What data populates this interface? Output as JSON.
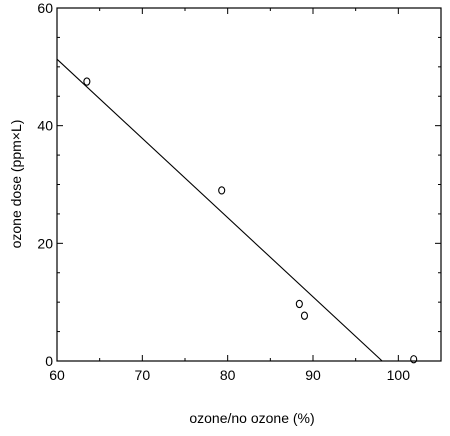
{
  "chart_data": {
    "type": "scatter",
    "title": "",
    "xlabel": "ozone/no ozone (%)",
    "ylabel": "ozone dose (ppm×L)",
    "xlim": [
      60,
      105
    ],
    "ylim": [
      0,
      60
    ],
    "xticks": [
      60,
      70,
      80,
      90,
      100
    ],
    "yticks": [
      0,
      20,
      40,
      60
    ],
    "grid": false,
    "series": [
      {
        "marker": "open-circle",
        "points": [
          {
            "x": 63.5,
            "y": 47.5
          },
          {
            "x": 79.3,
            "y": 29.0
          },
          {
            "x": 88.4,
            "y": 9.7
          },
          {
            "x": 89.0,
            "y": 7.7
          },
          {
            "x": 101.8,
            "y": 0.3
          }
        ]
      }
    ],
    "trendline": {
      "type": "linear",
      "from": {
        "x": 60,
        "y": 51.3
      },
      "to": {
        "x": 98.1,
        "y": 0
      }
    }
  }
}
